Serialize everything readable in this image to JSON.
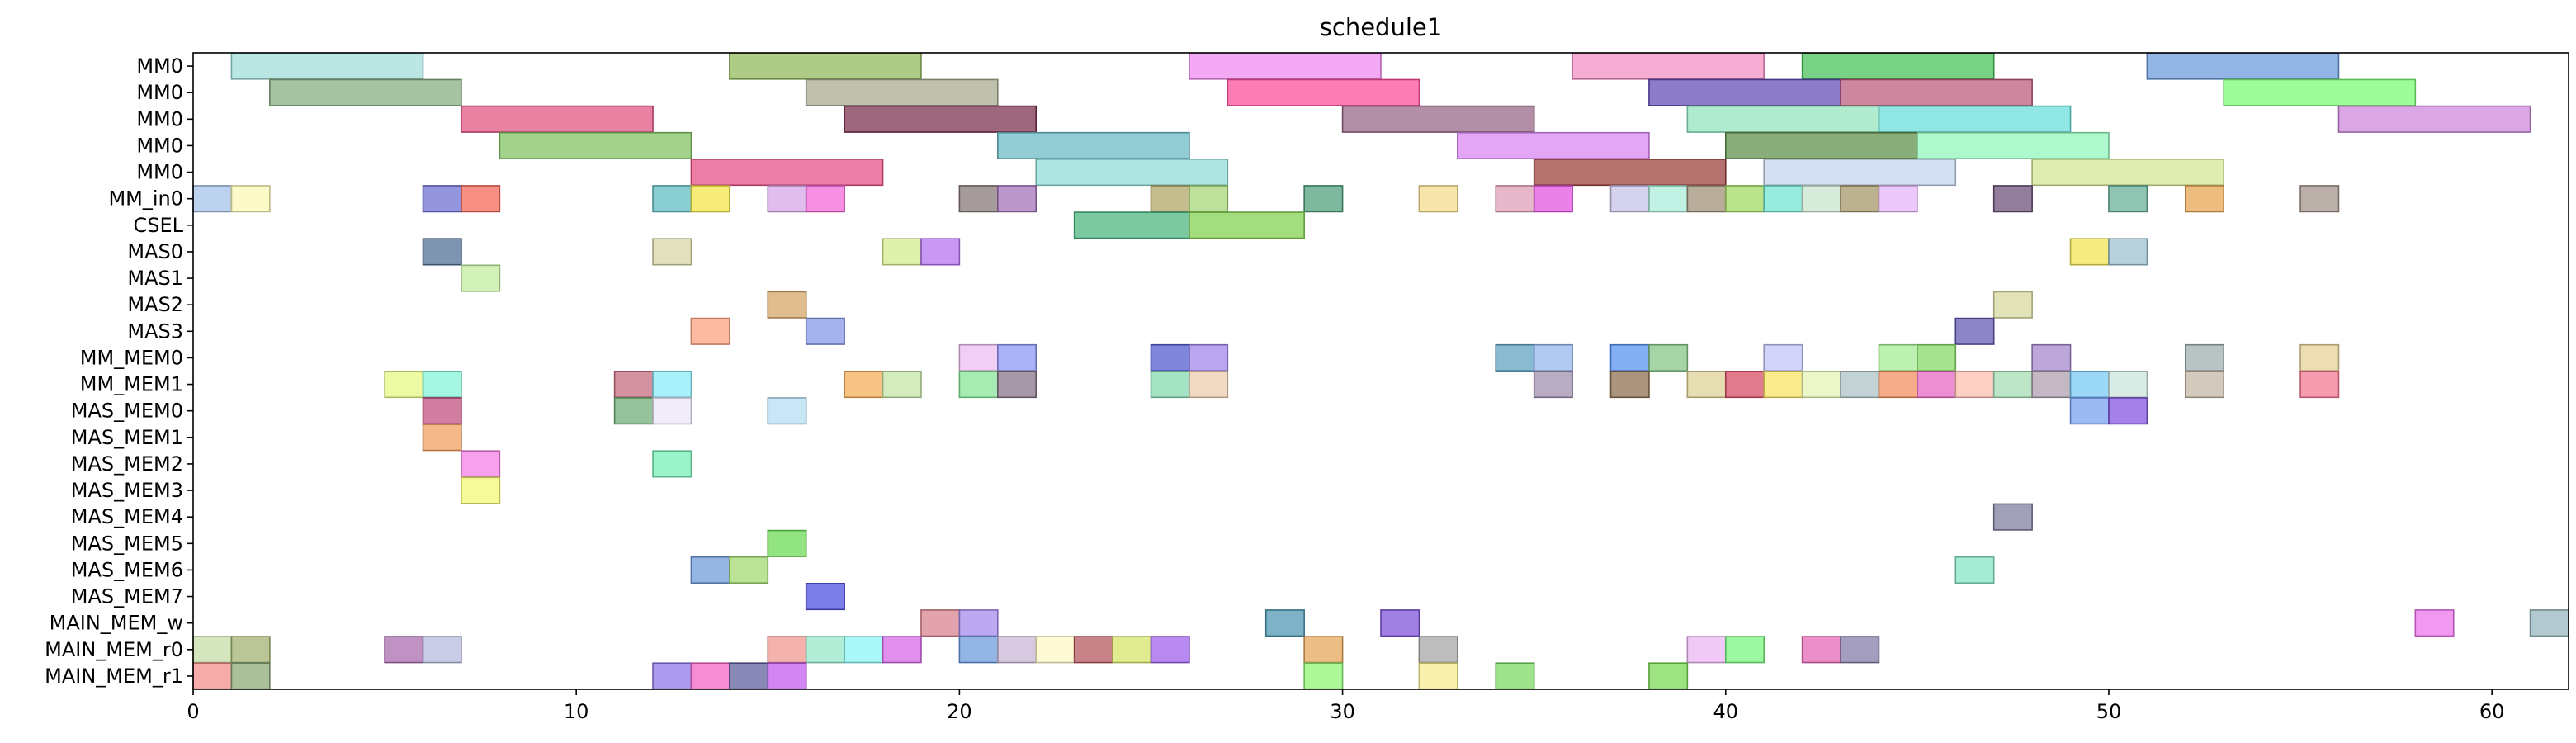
{
  "chart_data": {
    "type": "gantt",
    "title": "schedule1",
    "xlim": [
      0,
      62
    ],
    "x_ticks": [
      0,
      10,
      20,
      30,
      40,
      50,
      60
    ],
    "rows": [
      "MM0",
      "MM0",
      "MM0",
      "MM0",
      "MM0",
      "MM_in0",
      "CSEL",
      "MAS0",
      "MAS1",
      "MAS2",
      "MAS3",
      "MM_MEM0",
      "MM_MEM1",
      "MAS_MEM0",
      "MAS_MEM1",
      "MAS_MEM2",
      "MAS_MEM3",
      "MAS_MEM4",
      "MAS_MEM5",
      "MAS_MEM6",
      "MAS_MEM7",
      "MAIN_MEM_w",
      "MAIN_MEM_r0",
      "MAIN_MEM_r1"
    ],
    "tasks": [
      {
        "row": 0,
        "start": 1,
        "end": 6,
        "color": "#9fdcd8"
      },
      {
        "row": 0,
        "start": 14,
        "end": 19,
        "color": "#8fb858"
      },
      {
        "row": 0,
        "start": 26,
        "end": 31,
        "color": "#ee88ee"
      },
      {
        "row": 0,
        "start": 36,
        "end": 41,
        "color": "#f48cc4"
      },
      {
        "row": 0,
        "start": 42,
        "end": 47,
        "color": "#44c058"
      },
      {
        "row": 0,
        "start": 51,
        "end": 56,
        "color": "#6898dc"
      },
      {
        "row": 1,
        "start": 2,
        "end": 7,
        "color": "#84ac80"
      },
      {
        "row": 1,
        "start": 16,
        "end": 21,
        "color": "#a8a890"
      },
      {
        "row": 1,
        "start": 27,
        "end": 32,
        "color": "#fc4c98"
      },
      {
        "row": 1,
        "start": 38,
        "end": 43,
        "color": "#6048b4"
      },
      {
        "row": 1,
        "start": 43,
        "end": 48,
        "color": "#b85878"
      },
      {
        "row": 1,
        "start": 53,
        "end": 58,
        "color": "#78fc70"
      },
      {
        "row": 2,
        "start": 7,
        "end": 12,
        "color": "#e05080"
      },
      {
        "row": 2,
        "start": 17,
        "end": 22,
        "color": "#782c4c"
      },
      {
        "row": 2,
        "start": 30,
        "end": 35,
        "color": "#946484"
      },
      {
        "row": 2,
        "start": 39,
        "end": 44,
        "color": "#90e4bc"
      },
      {
        "row": 2,
        "start": 44,
        "end": 49,
        "color": "#64dcd8"
      },
      {
        "row": 2,
        "start": 56,
        "end": 61,
        "color": "#cc84d8"
      },
      {
        "row": 3,
        "start": 8,
        "end": 13,
        "color": "#80c060"
      },
      {
        "row": 3,
        "start": 21,
        "end": 26,
        "color": "#68b8c4"
      },
      {
        "row": 3,
        "start": 33,
        "end": 38,
        "color": "#d884f4"
      },
      {
        "row": 3,
        "start": 40,
        "end": 45,
        "color": "#5c8c48"
      },
      {
        "row": 3,
        "start": 45,
        "end": 50,
        "color": "#90f4b8"
      },
      {
        "row": 4,
        "start": 13,
        "end": 18,
        "color": "#e44c84"
      },
      {
        "row": 4,
        "start": 22,
        "end": 27,
        "color": "#90dcd8"
      },
      {
        "row": 4,
        "start": 35,
        "end": 40,
        "color": "#983c38"
      },
      {
        "row": 4,
        "start": 41,
        "end": 46,
        "color": "#c4d4ec"
      },
      {
        "row": 4,
        "start": 48,
        "end": 53,
        "color": "#d4e494"
      },
      {
        "row": 5,
        "start": 0,
        "end": 1,
        "color": "#a4c0e8"
      },
      {
        "row": 5,
        "start": 1,
        "end": 2,
        "color": "#fcf8b4"
      },
      {
        "row": 5,
        "start": 6,
        "end": 7,
        "color": "#6c6cd0"
      },
      {
        "row": 5,
        "start": 7,
        "end": 8,
        "color": "#f46454"
      },
      {
        "row": 5,
        "start": 12,
        "end": 13,
        "color": "#5cbcc0"
      },
      {
        "row": 5,
        "start": 13,
        "end": 14,
        "color": "#f4e444"
      },
      {
        "row": 5,
        "start": 15,
        "end": 16,
        "color": "#d4a4e4"
      },
      {
        "row": 5,
        "start": 16,
        "end": 17,
        "color": "#f464d8"
      },
      {
        "row": 5,
        "start": 20,
        "end": 21,
        "color": "#847474"
      },
      {
        "row": 5,
        "start": 21,
        "end": 22,
        "color": "#a070b8"
      },
      {
        "row": 5,
        "start": 25,
        "end": 26,
        "color": "#b0a464"
      },
      {
        "row": 5,
        "start": 26,
        "end": 27,
        "color": "#a4d474"
      },
      {
        "row": 5,
        "start": 29,
        "end": 30,
        "color": "#4c9c78"
      },
      {
        "row": 5,
        "start": 32,
        "end": 33,
        "color": "#f4dc8c"
      },
      {
        "row": 5,
        "start": 34,
        "end": 35,
        "color": "#dc9cb4"
      },
      {
        "row": 5,
        "start": 35,
        "end": 36,
        "color": "#e050e0"
      },
      {
        "row": 5,
        "start": 37,
        "end": 38,
        "color": "#c4c0e4"
      },
      {
        "row": 5,
        "start": 38,
        "end": 39,
        "color": "#a8ecd8"
      },
      {
        "row": 5,
        "start": 39,
        "end": 40,
        "color": "#9c8c74"
      },
      {
        "row": 5,
        "start": 40,
        "end": 41,
        "color": "#a0d860"
      },
      {
        "row": 5,
        "start": 41,
        "end": 42,
        "color": "#70e4d0"
      },
      {
        "row": 5,
        "start": 42,
        "end": 43,
        "color": "#c8e4cc"
      },
      {
        "row": 5,
        "start": 43,
        "end": 44,
        "color": "#a49464"
      },
      {
        "row": 5,
        "start": 44,
        "end": 45,
        "color": "#e4b4f8"
      },
      {
        "row": 5,
        "start": 47,
        "end": 48,
        "color": "#684c74"
      },
      {
        "row": 5,
        "start": 50,
        "end": 51,
        "color": "#64ac94"
      },
      {
        "row": 5,
        "start": 52,
        "end": 53,
        "color": "#e4a44c"
      },
      {
        "row": 5,
        "start": 55,
        "end": 56,
        "color": "#a09088"
      },
      {
        "row": 6,
        "start": 23,
        "end": 26,
        "color": "#48b47c"
      },
      {
        "row": 6,
        "start": 26,
        "end": 29,
        "color": "#80d04c"
      },
      {
        "row": 7,
        "start": 6,
        "end": 7,
        "color": "#4c6c94"
      },
      {
        "row": 7,
        "start": 12,
        "end": 13,
        "color": "#d8d4a4"
      },
      {
        "row": 7,
        "start": 18,
        "end": 19,
        "color": "#d4ec8c"
      },
      {
        "row": 7,
        "start": 19,
        "end": 20,
        "color": "#b470f0"
      },
      {
        "row": 7,
        "start": 49,
        "end": 50,
        "color": "#f0e44c"
      },
      {
        "row": 7,
        "start": 50,
        "end": 51,
        "color": "#9cc0d0"
      },
      {
        "row": 8,
        "start": 7,
        "end": 8,
        "color": "#c0ec9c"
      },
      {
        "row": 9,
        "start": 15,
        "end": 16,
        "color": "#d4a464"
      },
      {
        "row": 9,
        "start": 47,
        "end": 48,
        "color": "#d8d8a0"
      },
      {
        "row": 10,
        "start": 13,
        "end": 14,
        "color": "#fca080"
      },
      {
        "row": 10,
        "start": 16,
        "end": 17,
        "color": "#8494e4"
      },
      {
        "row": 10,
        "start": 46,
        "end": 47,
        "color": "#6058b0"
      },
      {
        "row": 11,
        "start": 20,
        "end": 21,
        "color": "#ecbcf0"
      },
      {
        "row": 11,
        "start": 21,
        "end": 22,
        "color": "#8c94f4"
      },
      {
        "row": 11,
        "start": 25,
        "end": 26,
        "color": "#5058d0"
      },
      {
        "row": 11,
        "start": 26,
        "end": 27,
        "color": "#9c84ec"
      },
      {
        "row": 11,
        "start": 34,
        "end": 35,
        "color": "#5ca0c0"
      },
      {
        "row": 11,
        "start": 35,
        "end": 36,
        "color": "#94b4ec"
      },
      {
        "row": 11,
        "start": 37,
        "end": 38,
        "color": "#5490f0"
      },
      {
        "row": 11,
        "start": 38,
        "end": 39,
        "color": "#84c484"
      },
      {
        "row": 11,
        "start": 41,
        "end": 42,
        "color": "#c4c4f8"
      },
      {
        "row": 11,
        "start": 44,
        "end": 45,
        "color": "#a4ec94"
      },
      {
        "row": 11,
        "start": 45,
        "end": 46,
        "color": "#84d864"
      },
      {
        "row": 11,
        "start": 48,
        "end": 49,
        "color": "#a484cc"
      },
      {
        "row": 11,
        "start": 52,
        "end": 53,
        "color": "#9cacac"
      },
      {
        "row": 11,
        "start": 55,
        "end": 56,
        "color": "#e4d094"
      },
      {
        "row": 12,
        "start": 5,
        "end": 6,
        "color": "#e4f880"
      },
      {
        "row": 12,
        "start": 6,
        "end": 7,
        "color": "#80f4d4"
      },
      {
        "row": 12,
        "start": 11,
        "end": 12,
        "color": "#c4687c"
      },
      {
        "row": 12,
        "start": 12,
        "end": 13,
        "color": "#88ecf8"
      },
      {
        "row": 12,
        "start": 17,
        "end": 18,
        "color": "#f4ac54"
      },
      {
        "row": 12,
        "start": 18,
        "end": 19,
        "color": "#c4e4a4"
      },
      {
        "row": 12,
        "start": 20,
        "end": 21,
        "color": "#84e494"
      },
      {
        "row": 12,
        "start": 21,
        "end": 22,
        "color": "#847084"
      },
      {
        "row": 12,
        "start": 25,
        "end": 26,
        "color": "#80d8ac"
      },
      {
        "row": 12,
        "start": 26,
        "end": 27,
        "color": "#ecccac"
      },
      {
        "row": 12,
        "start": 35,
        "end": 36,
        "color": "#9c8cac"
      },
      {
        "row": 12,
        "start": 37,
        "end": 38,
        "color": "#8c6c4c"
      },
      {
        "row": 12,
        "start": 39,
        "end": 40,
        "color": "#dcd094"
      },
      {
        "row": 12,
        "start": 40,
        "end": 41,
        "color": "#d84864"
      },
      {
        "row": 12,
        "start": 41,
        "end": 42,
        "color": "#f8e460"
      },
      {
        "row": 12,
        "start": 42,
        "end": 43,
        "color": "#e4f4b4"
      },
      {
        "row": 12,
        "start": 43,
        "end": 44,
        "color": "#acc0c4"
      },
      {
        "row": 12,
        "start": 44,
        "end": 45,
        "color": "#f48c5c"
      },
      {
        "row": 12,
        "start": 45,
        "end": 46,
        "color": "#e464c0"
      },
      {
        "row": 12,
        "start": 46,
        "end": 47,
        "color": "#fcbcac"
      },
      {
        "row": 12,
        "start": 47,
        "end": 48,
        "color": "#a4dcb4"
      },
      {
        "row": 12,
        "start": 48,
        "end": 49,
        "color": "#ac9cac"
      },
      {
        "row": 12,
        "start": 49,
        "end": 50,
        "color": "#74c8f4"
      },
      {
        "row": 12,
        "start": 50,
        "end": 51,
        "color": "#cce4dc"
      },
      {
        "row": 12,
        "start": 52,
        "end": 53,
        "color": "#c4b4a4"
      },
      {
        "row": 12,
        "start": 55,
        "end": 56,
        "color": "#f47490"
      },
      {
        "row": 13,
        "start": 6,
        "end": 7,
        "color": "#c04c7c"
      },
      {
        "row": 13,
        "start": 11,
        "end": 12,
        "color": "#6cac74"
      },
      {
        "row": 13,
        "start": 12,
        "end": 13,
        "color": "#ece4f8"
      },
      {
        "row": 13,
        "start": 15,
        "end": 16,
        "color": "#b4dcf4"
      },
      {
        "row": 13,
        "start": 49,
        "end": 50,
        "color": "#74a0f0"
      },
      {
        "row": 13,
        "start": 50,
        "end": 51,
        "color": "#8050dc"
      },
      {
        "row": 14,
        "start": 6,
        "end": 7,
        "color": "#f09c5c"
      },
      {
        "row": 15,
        "start": 7,
        "end": 8,
        "color": "#f47ce4"
      },
      {
        "row": 15,
        "start": 12,
        "end": 13,
        "color": "#74f0b4"
      },
      {
        "row": 16,
        "start": 7,
        "end": 8,
        "color": "#f4f870"
      },
      {
        "row": 17,
        "start": 47,
        "end": 48,
        "color": "#7c7c9c"
      },
      {
        "row": 18,
        "start": 15,
        "end": 16,
        "color": "#68d850"
      },
      {
        "row": 19,
        "start": 13,
        "end": 14,
        "color": "#6c98d8"
      },
      {
        "row": 19,
        "start": 14,
        "end": 15,
        "color": "#a0d870"
      },
      {
        "row": 19,
        "start": 46,
        "end": 47,
        "color": "#84e4c4"
      },
      {
        "row": 20,
        "start": 16,
        "end": 17,
        "color": "#4c4ce0"
      },
      {
        "row": 21,
        "start": 19,
        "end": 20,
        "color": "#d8808c"
      },
      {
        "row": 21,
        "start": 20,
        "end": 21,
        "color": "#a488ec"
      },
      {
        "row": 21,
        "start": 28,
        "end": 29,
        "color": "#4c94b0"
      },
      {
        "row": 21,
        "start": 31,
        "end": 32,
        "color": "#7c50d8"
      },
      {
        "row": 21,
        "start": 58,
        "end": 59,
        "color": "#ec70ec"
      },
      {
        "row": 21,
        "start": 61,
        "end": 62,
        "color": "#94b4bc"
      },
      {
        "row": 22,
        "start": 0,
        "end": 1,
        "color": "#c4dca4"
      },
      {
        "row": 22,
        "start": 1,
        "end": 2,
        "color": "#a0b06c"
      },
      {
        "row": 22,
        "start": 5,
        "end": 6,
        "color": "#a868ac"
      },
      {
        "row": 22,
        "start": 6,
        "end": 7,
        "color": "#b4b8dc"
      },
      {
        "row": 22,
        "start": 15,
        "end": 16,
        "color": "#f0948c"
      },
      {
        "row": 22,
        "start": 16,
        "end": 17,
        "color": "#94e8c8"
      },
      {
        "row": 22,
        "start": 17,
        "end": 18,
        "color": "#88f4f4"
      },
      {
        "row": 22,
        "start": 18,
        "end": 19,
        "color": "#d464e4"
      },
      {
        "row": 22,
        "start": 20,
        "end": 21,
        "color": "#6898dc"
      },
      {
        "row": 22,
        "start": 21,
        "end": 22,
        "color": "#c8b4d4"
      },
      {
        "row": 22,
        "start": 22,
        "end": 23,
        "color": "#fcf8c4"
      },
      {
        "row": 22,
        "start": 23,
        "end": 24,
        "color": "#b4545c"
      },
      {
        "row": 22,
        "start": 24,
        "end": 25,
        "color": "#d4e464"
      },
      {
        "row": 22,
        "start": 25,
        "end": 26,
        "color": "#9c5cec"
      },
      {
        "row": 22,
        "start": 29,
        "end": 30,
        "color": "#e4a454"
      },
      {
        "row": 22,
        "start": 32,
        "end": 33,
        "color": "#a4a4a4"
      },
      {
        "row": 22,
        "start": 39,
        "end": 40,
        "color": "#ecb4f4"
      },
      {
        "row": 22,
        "start": 40,
        "end": 41,
        "color": "#74f47c"
      },
      {
        "row": 22,
        "start": 42,
        "end": 43,
        "color": "#e464b4"
      },
      {
        "row": 22,
        "start": 43,
        "end": 44,
        "color": "#8078a4"
      },
      {
        "row": 23,
        "start": 0,
        "end": 1,
        "color": "#f48c8c"
      },
      {
        "row": 23,
        "start": 1,
        "end": 2,
        "color": "#88a874"
      },
      {
        "row": 23,
        "start": 12,
        "end": 13,
        "color": "#8c74e8"
      },
      {
        "row": 23,
        "start": 13,
        "end": 14,
        "color": "#f460c4"
      },
      {
        "row": 23,
        "start": 14,
        "end": 15,
        "color": "#5c5c9c"
      },
      {
        "row": 23,
        "start": 15,
        "end": 16,
        "color": "#c058ec"
      },
      {
        "row": 23,
        "start": 29,
        "end": 30,
        "color": "#8cf470"
      },
      {
        "row": 23,
        "start": 32,
        "end": 33,
        "color": "#f4ec8c"
      },
      {
        "row": 23,
        "start": 34,
        "end": 35,
        "color": "#78d860"
      },
      {
        "row": 23,
        "start": 38,
        "end": 39,
        "color": "#78d850"
      }
    ]
  }
}
